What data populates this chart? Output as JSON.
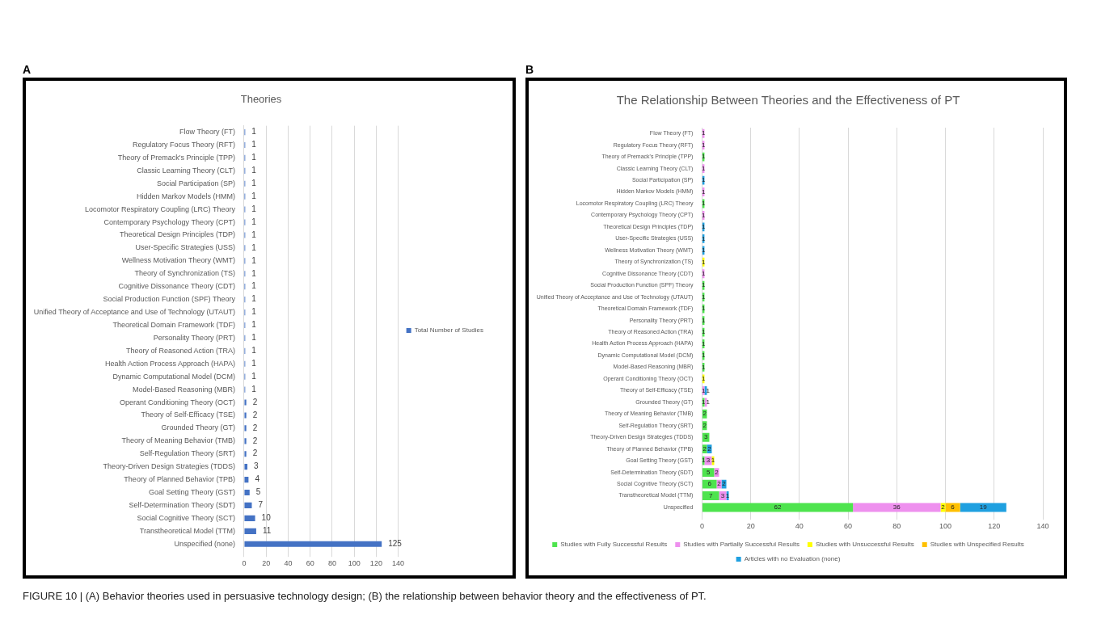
{
  "chart_data": [
    {
      "type": "bar",
      "orientation": "horizontal",
      "title": "Theories",
      "annotations": [
        "A"
      ],
      "categories": [
        "Flow Theory (FT)",
        "Regulatory Focus Theory (RFT)",
        "Theory of Premack's Principle (TPP)",
        "Classic Learning Theory (CLT)",
        "Social Participation (SP)",
        "Hidden Markov Models (HMM)",
        "Locomotor Respiratory Coupling (LRC) Theory",
        "Contemporary Psychology Theory (CPT)",
        "Theoretical Design Principles (TDP)",
        "User-Specific Strategies (USS)",
        "Wellness Motivation Theory (WMT)",
        "Theory of Synchronization (TS)",
        "Cognitive Dissonance Theory (CDT)",
        "Social Production Function (SPF) Theory",
        "Unified Theory of Acceptance and Use of Technology (UTAUT)",
        "Theoretical Domain Framework (TDF)",
        "Personality Theory (PRT)",
        "Theory of Reasoned Action (TRA)",
        "Health Action Process Approach (HAPA)",
        "Dynamic Computational Model (DCM)",
        "Model-Based Reasoning (MBR)",
        "Operant Conditioning Theory (OCT)",
        "Theory of Self-Efficacy (TSE)",
        "Grounded Theory (GT)",
        "Theory of Meaning Behavior (TMB)",
        "Self-Regulation Theory (SRT)",
        "Theory-Driven Design Strategies (TDDS)",
        "Theory of Planned Behavior (TPB)",
        "Goal Setting Theory (GST)",
        "Self-Determination Theory (SDT)",
        "Social Cognitive Theory (SCT)",
        "Transtheoretical Model (TTM)",
        "Unspecified (none)"
      ],
      "series": [
        {
          "name": "Total Number of Studies",
          "color": "#4472c4",
          "values": [
            1,
            1,
            1,
            1,
            1,
            1,
            1,
            1,
            1,
            1,
            1,
            1,
            1,
            1,
            1,
            1,
            1,
            1,
            1,
            1,
            1,
            2,
            2,
            2,
            2,
            2,
            3,
            4,
            5,
            7,
            10,
            11,
            125
          ]
        }
      ],
      "xlim": [
        0,
        140
      ],
      "xticks": [
        0,
        20,
        40,
        60,
        80,
        100,
        120,
        140
      ],
      "grid": "x",
      "legend": "right",
      "data_labels": true
    },
    {
      "type": "bar",
      "orientation": "horizontal",
      "stacked": true,
      "title": "The Relationship Between Theories and the Effectiveness of PT",
      "annotations": [
        "B",
        "FIGURE 10 | (A) Behavior theories used in persuasive technology design; (B) the relationship between behavior theory and the effectiveness of PT."
      ],
      "categories": [
        "Flow Theory (FT)",
        "Regulatory Focus Theory (RFT)",
        "Theory of Premack's Principle (TPP)",
        "Classic Learning Theory (CLT)",
        "Social Participation (SP)",
        "Hidden Markov Models (HMM)",
        "Locomotor Respiratory Coupling (LRC) Theory",
        "Contemporary Psychology Theory (CPT)",
        "Theoretical Design Principles (TDP)",
        "User-Specific Strategies (USS)",
        "Wellness Motivation Theory (WMT)",
        "Theory of Synchronization (TS)",
        "Cognitive Dissonance Theory (CDT)",
        "Social Production Function (SPF) Theory",
        "Unified Theory of Acceptance and Use of Technology (UTAUT)",
        "Theoretical Domain Framework (TDF)",
        "Personality Theory (PRT)",
        "Theory of Reasoned Action (TRA)",
        "Health Action Process Approach (HAPA)",
        "Dynamic Computational Model (DCM)",
        "Model-Based Reasoning (MBR)",
        "Operant Conditioning Theory (OCT)",
        "Theory of Self-Efficacy (TSE)",
        "Grounded Theory (GT)",
        "Theory of Meaning Behavior (TMB)",
        "Self-Regulation Theory (SRT)",
        "Theory-Driven Design Strategies (TDDS)",
        "Theory of Planned Behavior (TPB)",
        "Goal Setting Theory (GST)",
        "Self-Determination Theory (SDT)",
        "Social Cognitive Theory (SCT)",
        "Transtheoretical Model (TTM)",
        "Unspecified"
      ],
      "series": [
        {
          "name": "Studies with Fully Successful Results",
          "color": "#4ee44e",
          "values": [
            null,
            null,
            1,
            null,
            null,
            null,
            1,
            null,
            null,
            null,
            null,
            null,
            null,
            1,
            1,
            1,
            1,
            1,
            1,
            1,
            1,
            null,
            null,
            1,
            2,
            2,
            3,
            2,
            1,
            5,
            6,
            7,
            62
          ]
        },
        {
          "name": "Studies with Partially Successful Results",
          "color": "#ee90ee",
          "values": [
            1,
            1,
            null,
            1,
            null,
            1,
            null,
            1,
            null,
            null,
            null,
            null,
            1,
            null,
            null,
            null,
            null,
            null,
            null,
            null,
            null,
            null,
            1,
            1,
            null,
            null,
            null,
            null,
            3,
            2,
            2,
            3,
            36
          ]
        },
        {
          "name": "Studies with Unsuccessful Results",
          "color": "#ffff00",
          "values": [
            null,
            null,
            null,
            null,
            null,
            null,
            null,
            null,
            null,
            null,
            null,
            1,
            null,
            null,
            null,
            null,
            null,
            null,
            null,
            null,
            null,
            1,
            null,
            null,
            null,
            null,
            null,
            null,
            1,
            null,
            null,
            null,
            2
          ]
        },
        {
          "name": "Studies with Unspecified Results",
          "color": "#ffc000",
          "values": [
            null,
            null,
            null,
            null,
            null,
            null,
            null,
            null,
            null,
            null,
            null,
            null,
            null,
            null,
            null,
            null,
            null,
            null,
            null,
            null,
            null,
            null,
            null,
            null,
            null,
            null,
            null,
            null,
            null,
            null,
            null,
            null,
            6
          ]
        },
        {
          "name": "Articles with no Evaluation (none)",
          "color": "#1fa0e0",
          "values": [
            null,
            null,
            null,
            null,
            1,
            null,
            null,
            null,
            1,
            1,
            1,
            null,
            null,
            null,
            null,
            null,
            null,
            null,
            null,
            null,
            null,
            null,
            1,
            null,
            null,
            null,
            null,
            2,
            null,
            null,
            2,
            1,
            19
          ]
        }
      ],
      "xlim": [
        0,
        140
      ],
      "xticks": [
        0,
        20,
        40,
        60,
        80,
        100,
        120,
        140
      ],
      "grid": "x",
      "legend": "bottom",
      "data_labels": true
    }
  ]
}
